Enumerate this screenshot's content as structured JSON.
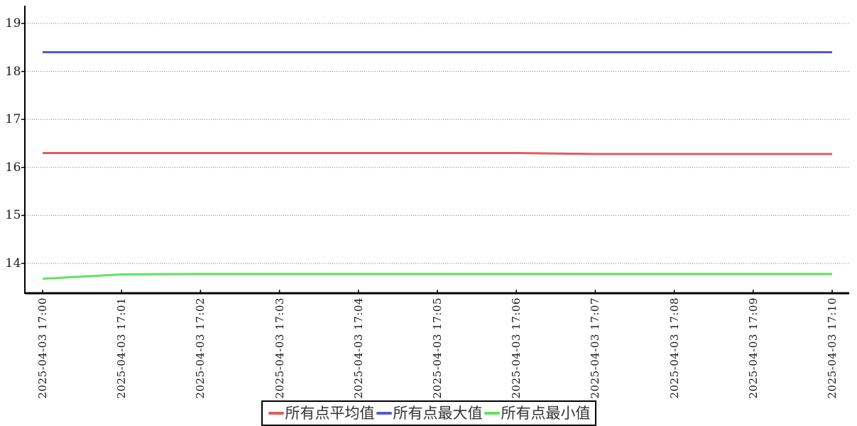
{
  "chart_data": {
    "type": "line",
    "title": "",
    "xlabel": "",
    "ylabel": "",
    "categories": [
      "2025-04-03 17:00",
      "2025-04-03 17:01",
      "2025-04-03 17:02",
      "2025-04-03 17:03",
      "2025-04-03 17:04",
      "2025-04-03 17:05",
      "2025-04-03 17:06",
      "2025-04-03 17:07",
      "2025-04-03 17:08",
      "2025-04-03 17:09",
      "2025-04-03 17:10"
    ],
    "series": [
      {
        "name": "所有点平均值",
        "color": "#e25c5c",
        "values": [
          16.3,
          16.3,
          16.3,
          16.3,
          16.3,
          16.3,
          16.3,
          16.28,
          16.28,
          16.28,
          16.28
        ]
      },
      {
        "name": "所有点最大值",
        "color": "#5757d9",
        "values": [
          18.4,
          18.4,
          18.4,
          18.4,
          18.4,
          18.4,
          18.4,
          18.4,
          18.4,
          18.4,
          18.4
        ]
      },
      {
        "name": "所有点最小值",
        "color": "#5fe35f",
        "values": [
          13.68,
          13.77,
          13.78,
          13.78,
          13.78,
          13.78,
          13.78,
          13.78,
          13.78,
          13.78,
          13.78
        ]
      }
    ],
    "yticks": [
      14,
      15,
      16,
      17,
      18,
      19
    ],
    "ylim": [
      13.38,
      19.37
    ],
    "grid": "dotted horizontal",
    "legend_position": "bottom-center",
    "colors": {
      "axis": "#000000",
      "gridline": "#777777",
      "tick_text": "#1a1a1a",
      "legend_text": "#333333",
      "background": "#ffffff"
    }
  }
}
